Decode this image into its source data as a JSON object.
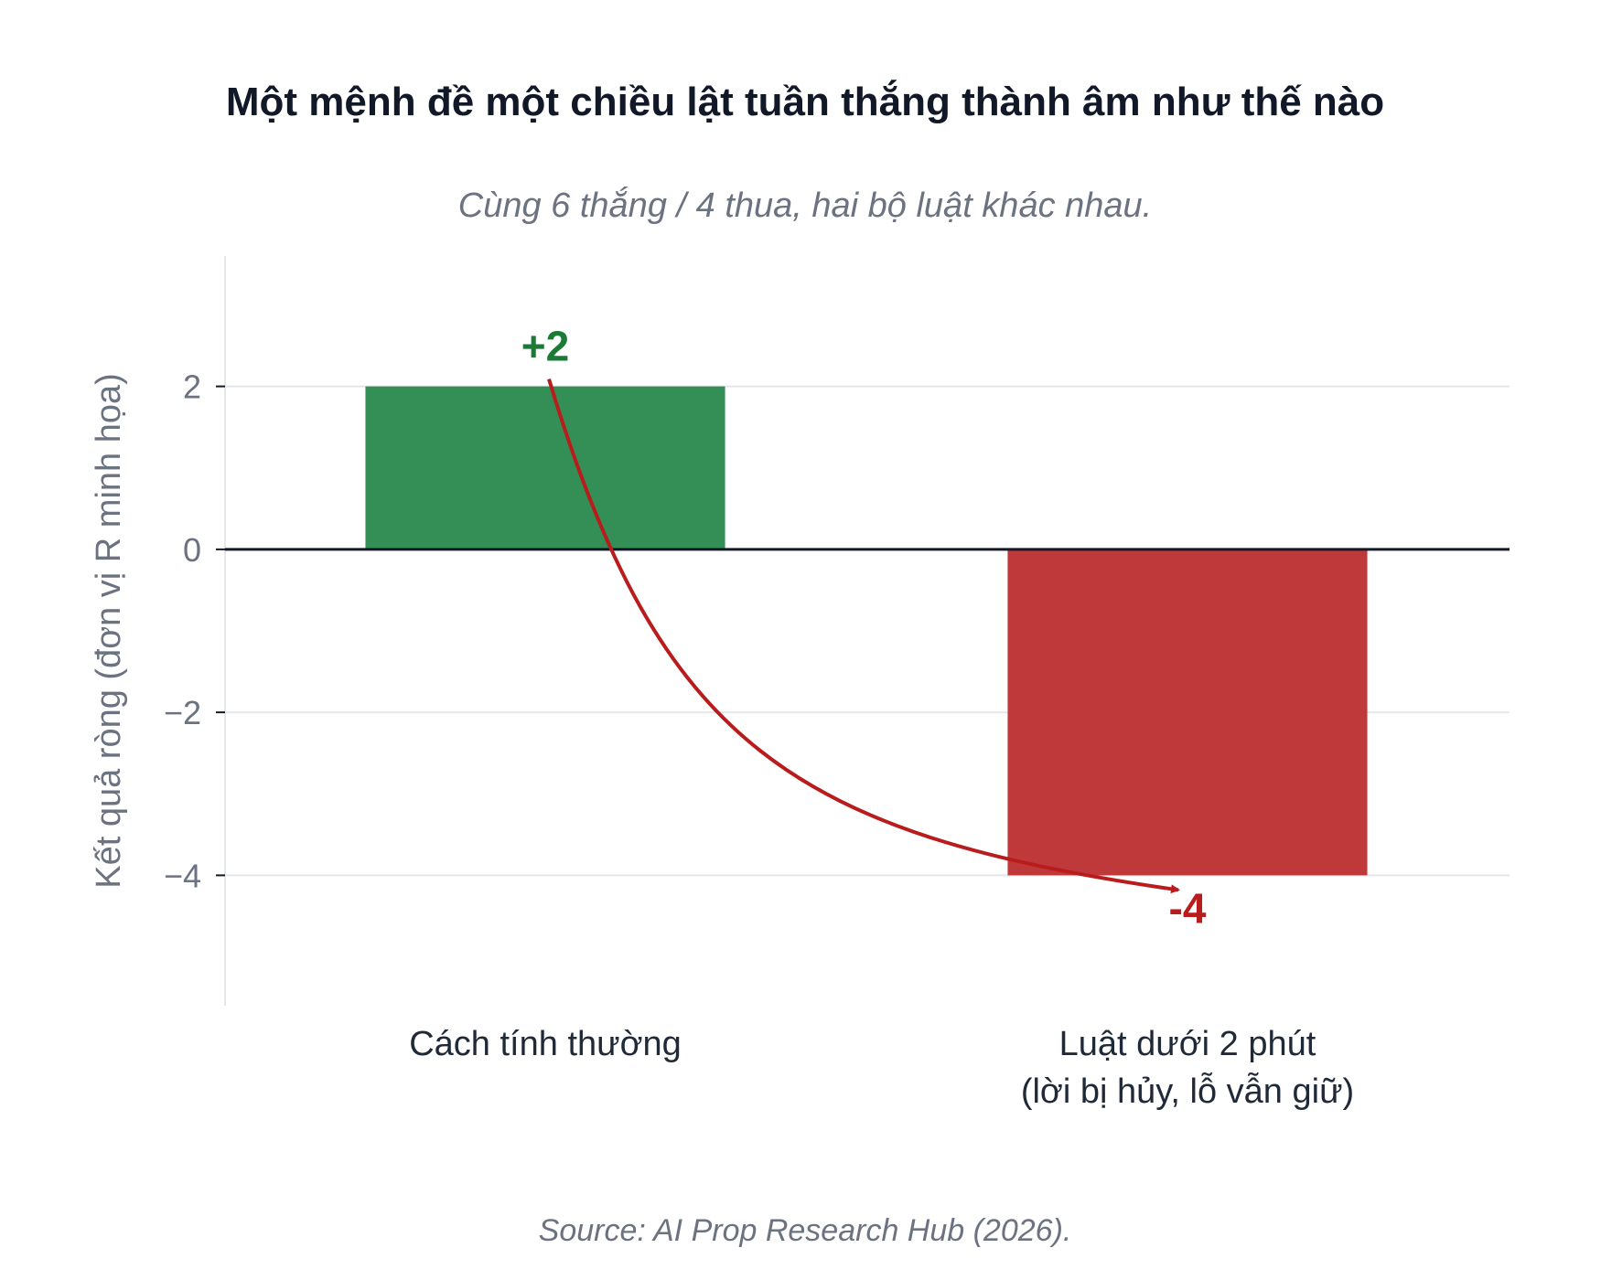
{
  "chart_data": {
    "type": "bar",
    "title": "Một mệnh đề một chiều lật tuần thắng thành âm như thế nào",
    "subtitle": "Cùng 6 thắng / 4 thua, hai bộ luật khác nhau.",
    "ylabel": "Kết quả ròng (đơn vị R minh họa)",
    "categories": [
      [
        "Cách tính thường"
      ],
      [
        "Luật dưới 2 phút",
        "(lời bị hủy, lỗ vẫn giữ)"
      ]
    ],
    "values": [
      2,
      -4
    ],
    "value_labels": [
      "+2",
      "-4"
    ],
    "bar_colors": [
      "#348f56",
      "#c0393a"
    ],
    "value_label_colors": [
      "#1a7a36",
      "#b91c1c"
    ],
    "arrow_color": "#b91c1c",
    "ylim": [
      -5.6,
      3.6
    ],
    "yticks": [
      2,
      0,
      -2,
      -4
    ],
    "ytick_labels": [
      "2",
      "0",
      "−2",
      "−4"
    ],
    "grid": true,
    "zero_line": true
  },
  "source": "Source: AI Prop Research Hub (2026)."
}
